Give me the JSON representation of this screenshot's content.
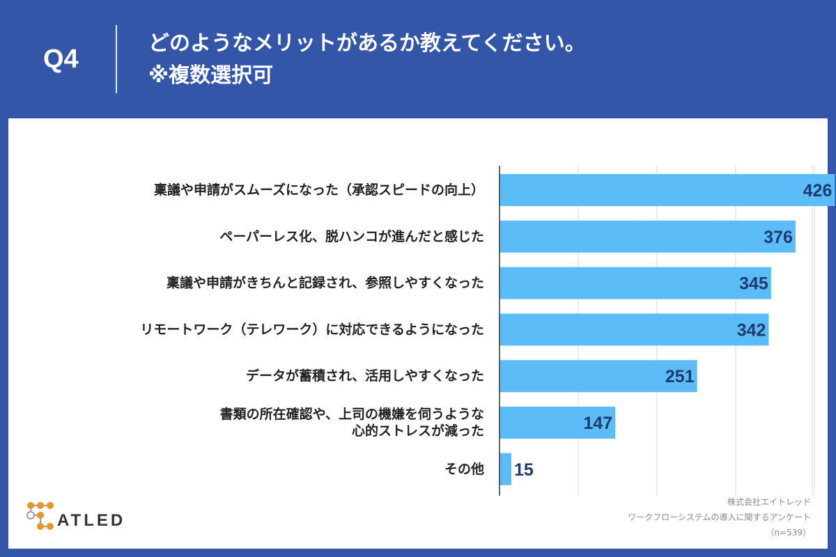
{
  "header": {
    "question": "Q4",
    "title_line1": "どのようなメリットがあるか教えてください。",
    "title_line2": "※複数選択可"
  },
  "chart_data": {
    "type": "bar",
    "orientation": "horizontal",
    "categories": [
      [
        "稟議や申請がスムーズになった（承認スピードの向上）"
      ],
      [
        "ペーパーレス化、脱ハンコが進んだと感じた"
      ],
      [
        "稟議や申請がきちんと記録され、参照しやすくなった"
      ],
      [
        "リモートワーク（テレワーク）に対応できるようになった"
      ],
      [
        "データが蓄積され、活用しやすくなった"
      ],
      [
        "書類の所在確認や、上司の機嫌を伺うような",
        "心的ストレスが減った"
      ],
      [
        "その他"
      ]
    ],
    "values": [
      426,
      376,
      345,
      342,
      251,
      147,
      15
    ],
    "xlim": [
      0,
      500
    ],
    "grid": true,
    "bar_color": "#5bbcf8"
  },
  "logo": {
    "text": "ATLED"
  },
  "source": {
    "company": "株式会社エイトレッド",
    "survey": "ワークフローシステムの導入に関するアンケート",
    "sample": "（n=539）"
  },
  "colors": {
    "background": "#3356a8",
    "panel": "#ffffff",
    "bar": "#5bbcf8",
    "value_text": "#1f3b6e",
    "logo_orange": "#e8962e"
  }
}
